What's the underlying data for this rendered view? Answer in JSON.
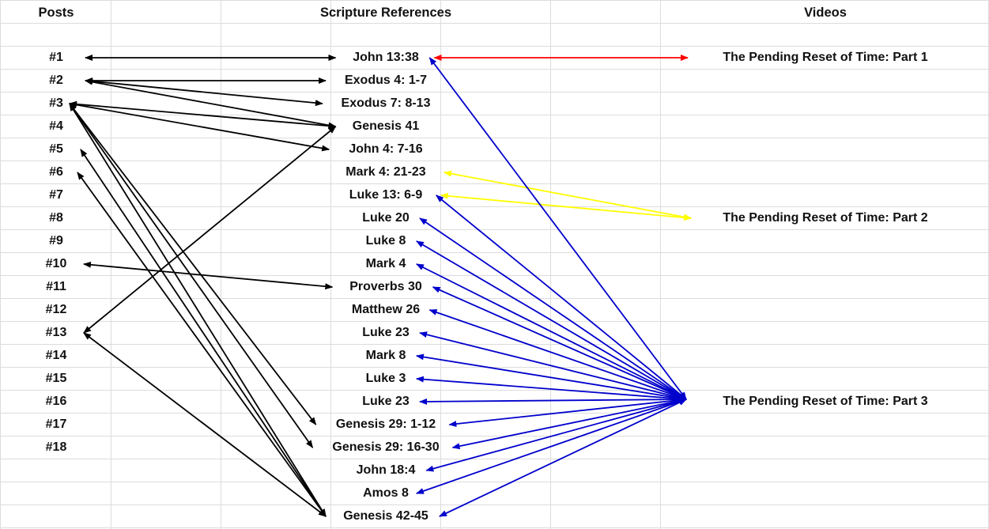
{
  "headers": {
    "posts": "Posts",
    "scripture": "Scripture References",
    "videos": "Videos"
  },
  "posts": [
    "#1",
    "#2",
    "#3",
    "#4",
    "#5",
    "#6",
    "#7",
    "#8",
    "#9",
    "#10",
    "#11",
    "#12",
    "#13",
    "#14",
    "#15",
    "#16",
    "#17",
    "#18"
  ],
  "scriptures": [
    "John 13:38",
    "Exodus 4: 1-7",
    "Exodus 7: 8-13",
    "Genesis 41",
    "John 4: 7-16",
    "Mark 4: 21-23",
    "Luke 13: 6-9",
    "Luke 20",
    "Luke 8",
    "Mark 4",
    "Proverbs 30",
    "Matthew 26",
    "Luke 23",
    "Mark 8",
    "Luke 3",
    "Luke 23",
    "Genesis 29: 1-12",
    "Genesis 29: 16-30",
    "John 18:4",
    "Amos 8",
    "Genesis 42-45"
  ],
  "videos": [
    "The Pending Reset of Time: Part 1",
    "The Pending Reset of Time: Part 2",
    "The Pending Reset of Time: Part 3"
  ],
  "colors": {
    "post_links": "#000000",
    "part1_links": "#ff0000",
    "part2_links": "#ffff00",
    "part3_links": "#0000cc",
    "gridlines": "#dcdcdc"
  },
  "links": {
    "post_to_scripture": [
      {
        "post": "#1",
        "scripture": "John 13:38"
      },
      {
        "post": "#2",
        "scripture": "Exodus 4: 1-7"
      },
      {
        "post": "#2",
        "scripture": "Exodus 7: 8-13"
      },
      {
        "post": "#2",
        "scripture": "Genesis 41"
      },
      {
        "post": "#3",
        "scripture": "Genesis 41"
      },
      {
        "post": "#3",
        "scripture": "John 4: 7-16"
      },
      {
        "post": "#3",
        "scripture": "Genesis 29: 1-12"
      },
      {
        "post": "#3",
        "scripture": "Genesis 29: 16-30"
      },
      {
        "post": "#3",
        "scripture": "Genesis 42-45"
      },
      {
        "post": "#5",
        "scripture": "Genesis 42-45"
      },
      {
        "post": "#6",
        "scripture": "Genesis 42-45"
      },
      {
        "post": "#10",
        "scripture": "Proverbs 30"
      },
      {
        "post": "#13",
        "scripture": "Genesis 41"
      },
      {
        "post": "#13",
        "scripture": "Genesis 42-45"
      }
    ],
    "video_part1": [
      "John 13:38"
    ],
    "video_part2": [
      "Mark 4: 21-23",
      "Luke 13: 6-9"
    ],
    "video_part3": [
      "John 13:38",
      "Luke 13: 6-9",
      "Luke 20",
      "Luke 8",
      "Mark 4",
      "Proverbs 30",
      "Matthew 26",
      "Luke 23",
      "Mark 8",
      "Luke 3",
      "Luke 23",
      "Genesis 29: 1-12",
      "Genesis 29: 16-30",
      "John 18:4",
      "Amos 8",
      "Genesis 42-45"
    ]
  }
}
